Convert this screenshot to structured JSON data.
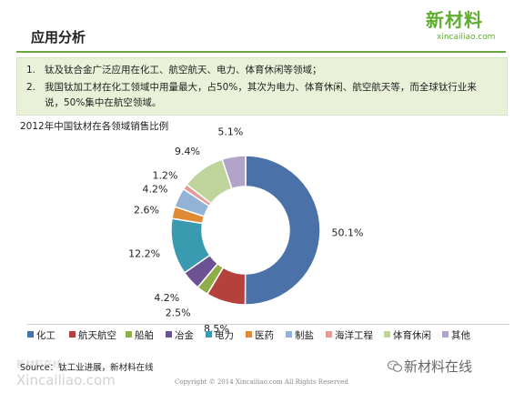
{
  "header": {
    "title": "应用分析"
  },
  "logo": {
    "main": "新材料",
    "sub": "xincailiao.com"
  },
  "points": [
    {
      "num": "1.",
      "text": "钛及钛合金广泛应用在化工、航空航天、电力、体育休闲等领域；"
    },
    {
      "num": "2.",
      "text": "我国钛加工材在化工领域中用量最大，占50%，其次为电力、体育休闲、航空航天等，而全球钛行业来"
    },
    {
      "num": "",
      "text": "说，50%集中在航空领域。"
    }
  ],
  "chart_data": {
    "type": "pie",
    "donut": true,
    "title": "2012年中国钛材在各领域销售比例",
    "labels": [
      "化工",
      "航天航空",
      "船舶",
      "冶金",
      "电力",
      "医药",
      "制盐",
      "海洋工程",
      "体育休闲",
      "其他"
    ],
    "values": [
      50.1,
      8.5,
      2.5,
      4.2,
      12.2,
      2.6,
      4.2,
      1.2,
      9.4,
      5.1
    ],
    "data_labels": [
      "50.1%",
      "8.5%",
      "2.5%",
      "4.2%",
      "12.2%",
      "2.6%",
      "4.2%",
      "1.2%",
      "9.4%",
      "5.1%"
    ],
    "colors": [
      "#4a72a8",
      "#b5413d",
      "#8fae4a",
      "#6a5294",
      "#3a9bb0",
      "#e08a36",
      "#92b2d6",
      "#e39b97",
      "#bfd49a",
      "#b2a3c9"
    ],
    "legend_position": "bottom"
  },
  "footer": {
    "source": "Source：钛工业进展，新材料在线",
    "copyright": "Copyright © 2014   Xincailiao.com   All Rights Reserved",
    "watermark_left_1": "新材料在线",
    "watermark_left_2": "Xincailiao.com",
    "watermark_right": "新材料在线"
  }
}
